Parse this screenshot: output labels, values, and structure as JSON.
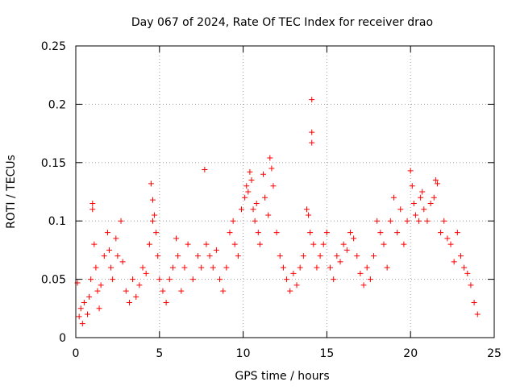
{
  "chart_data": {
    "type": "scatter",
    "title": "Day 067 of 2024, Rate Of TEC Index for receiver drao",
    "xlabel": "GPS time / hours",
    "ylabel": "ROTI / TECUs",
    "xlim": [
      0,
      25
    ],
    "ylim": [
      0,
      0.25
    ],
    "xticks": [
      0,
      5,
      10,
      15,
      20,
      25
    ],
    "yticks": [
      0,
      0.05,
      0.1,
      0.15,
      0.2,
      0.25
    ],
    "xtick_labels": [
      "0",
      "5",
      "10",
      "15",
      "20",
      "25"
    ],
    "ytick_labels": [
      "0",
      "0.05",
      "0.1",
      "0.15",
      "0.2",
      "0.25"
    ],
    "grid": true,
    "marker": "+",
    "marker_color": "#ff0000",
    "series": [
      {
        "points": [
          [
            0.1,
            0.047
          ],
          [
            0.2,
            0.018
          ],
          [
            0.3,
            0.025
          ],
          [
            0.4,
            0.012
          ],
          [
            0.5,
            0.03
          ],
          [
            0.7,
            0.02
          ],
          [
            0.8,
            0.035
          ],
          [
            0.9,
            0.05
          ],
          [
            1.0,
            0.115
          ],
          [
            1.0,
            0.11
          ],
          [
            1.1,
            0.08
          ],
          [
            1.2,
            0.06
          ],
          [
            1.3,
            0.04
          ],
          [
            1.4,
            0.025
          ],
          [
            1.5,
            0.045
          ],
          [
            1.7,
            0.07
          ],
          [
            1.9,
            0.09
          ],
          [
            2.0,
            0.075
          ],
          [
            2.1,
            0.06
          ],
          [
            2.2,
            0.05
          ],
          [
            2.4,
            0.085
          ],
          [
            2.5,
            0.07
          ],
          [
            2.7,
            0.1
          ],
          [
            2.8,
            0.065
          ],
          [
            3.0,
            0.04
          ],
          [
            3.2,
            0.03
          ],
          [
            3.4,
            0.05
          ],
          [
            3.6,
            0.035
          ],
          [
            3.8,
            0.045
          ],
          [
            4.0,
            0.06
          ],
          [
            4.2,
            0.055
          ],
          [
            4.4,
            0.08
          ],
          [
            4.5,
            0.132
          ],
          [
            4.6,
            0.118
          ],
          [
            4.6,
            0.1
          ],
          [
            4.7,
            0.105
          ],
          [
            4.8,
            0.09
          ],
          [
            4.9,
            0.07
          ],
          [
            5.0,
            0.05
          ],
          [
            5.2,
            0.04
          ],
          [
            5.4,
            0.03
          ],
          [
            5.6,
            0.05
          ],
          [
            5.8,
            0.06
          ],
          [
            6.0,
            0.085
          ],
          [
            6.1,
            0.07
          ],
          [
            6.3,
            0.04
          ],
          [
            6.5,
            0.06
          ],
          [
            6.7,
            0.08
          ],
          [
            7.0,
            0.05
          ],
          [
            7.3,
            0.07
          ],
          [
            7.5,
            0.06
          ],
          [
            7.7,
            0.144
          ],
          [
            7.8,
            0.08
          ],
          [
            8.0,
            0.07
          ],
          [
            8.2,
            0.06
          ],
          [
            8.4,
            0.075
          ],
          [
            8.6,
            0.05
          ],
          [
            8.8,
            0.04
          ],
          [
            9.0,
            0.06
          ],
          [
            9.2,
            0.09
          ],
          [
            9.4,
            0.1
          ],
          [
            9.5,
            0.08
          ],
          [
            9.7,
            0.07
          ],
          [
            9.9,
            0.11
          ],
          [
            10.1,
            0.12
          ],
          [
            10.2,
            0.13
          ],
          [
            10.3,
            0.125
          ],
          [
            10.4,
            0.142
          ],
          [
            10.5,
            0.135
          ],
          [
            10.6,
            0.11
          ],
          [
            10.7,
            0.1
          ],
          [
            10.8,
            0.115
          ],
          [
            10.9,
            0.09
          ],
          [
            11.0,
            0.08
          ],
          [
            11.2,
            0.14
          ],
          [
            11.3,
            0.12
          ],
          [
            11.5,
            0.105
          ],
          [
            11.6,
            0.154
          ],
          [
            11.7,
            0.145
          ],
          [
            11.8,
            0.13
          ],
          [
            12.0,
            0.09
          ],
          [
            12.2,
            0.07
          ],
          [
            12.4,
            0.06
          ],
          [
            12.6,
            0.05
          ],
          [
            12.8,
            0.04
          ],
          [
            13.0,
            0.055
          ],
          [
            13.2,
            0.045
          ],
          [
            13.4,
            0.06
          ],
          [
            13.6,
            0.07
          ],
          [
            13.8,
            0.11
          ],
          [
            13.9,
            0.105
          ],
          [
            14.0,
            0.09
          ],
          [
            14.1,
            0.204
          ],
          [
            14.1,
            0.176
          ],
          [
            14.1,
            0.167
          ],
          [
            14.2,
            0.08
          ],
          [
            14.4,
            0.06
          ],
          [
            14.6,
            0.07
          ],
          [
            14.8,
            0.08
          ],
          [
            15.0,
            0.09
          ],
          [
            15.2,
            0.06
          ],
          [
            15.4,
            0.05
          ],
          [
            15.6,
            0.07
          ],
          [
            15.8,
            0.065
          ],
          [
            16.0,
            0.08
          ],
          [
            16.2,
            0.075
          ],
          [
            16.4,
            0.09
          ],
          [
            16.6,
            0.085
          ],
          [
            16.8,
            0.07
          ],
          [
            17.0,
            0.055
          ],
          [
            17.2,
            0.045
          ],
          [
            17.4,
            0.06
          ],
          [
            17.6,
            0.05
          ],
          [
            17.8,
            0.07
          ],
          [
            18.0,
            0.1
          ],
          [
            18.2,
            0.09
          ],
          [
            18.4,
            0.08
          ],
          [
            18.6,
            0.06
          ],
          [
            18.8,
            0.1
          ],
          [
            19.0,
            0.12
          ],
          [
            19.2,
            0.09
          ],
          [
            19.4,
            0.11
          ],
          [
            19.6,
            0.08
          ],
          [
            19.8,
            0.1
          ],
          [
            20.0,
            0.143
          ],
          [
            20.1,
            0.13
          ],
          [
            20.2,
            0.115
          ],
          [
            20.3,
            0.105
          ],
          [
            20.5,
            0.1
          ],
          [
            20.6,
            0.12
          ],
          [
            20.7,
            0.125
          ],
          [
            20.8,
            0.11
          ],
          [
            21.0,
            0.1
          ],
          [
            21.2,
            0.115
          ],
          [
            21.4,
            0.12
          ],
          [
            21.5,
            0.135
          ],
          [
            21.6,
            0.132
          ],
          [
            21.8,
            0.09
          ],
          [
            22.0,
            0.1
          ],
          [
            22.2,
            0.085
          ],
          [
            22.4,
            0.08
          ],
          [
            22.6,
            0.065
          ],
          [
            22.8,
            0.09
          ],
          [
            23.0,
            0.07
          ],
          [
            23.2,
            0.06
          ],
          [
            23.4,
            0.055
          ],
          [
            23.6,
            0.045
          ],
          [
            23.8,
            0.03
          ],
          [
            24.0,
            0.02
          ]
        ]
      }
    ]
  }
}
